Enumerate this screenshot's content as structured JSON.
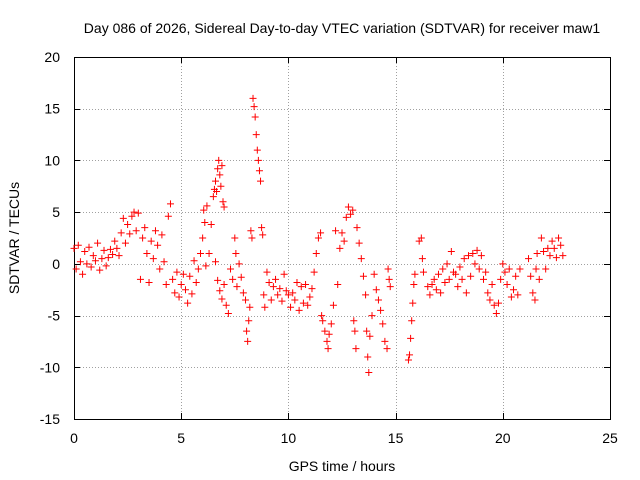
{
  "chart_data": {
    "type": "scatter",
    "title": "Day 086 of 2026, Sidereal Day-to-day VTEC variation (SDTVAR) for receiver maw1",
    "xlabel": "GPS time / hours",
    "ylabel": "SDTVAR / TECUs",
    "xlim": [
      0,
      25
    ],
    "ylim": [
      -15,
      20
    ],
    "x_ticks": [
      0,
      5,
      10,
      15,
      20,
      25
    ],
    "y_ticks": [
      -15,
      -10,
      -5,
      0,
      5,
      10,
      15,
      20
    ],
    "x_tick_labels": [
      "0",
      "5",
      "10",
      "15",
      "20",
      "25"
    ],
    "y_tick_labels": [
      "-15",
      "-10",
      "-5",
      "0",
      "5",
      "10",
      "15",
      "20"
    ],
    "grid": true,
    "marker": "+",
    "series": [
      {
        "name": "maw1",
        "color": "#ff0000",
        "points": [
          [
            0.0,
            1.5
          ],
          [
            0.1,
            -0.5
          ],
          [
            0.2,
            1.8
          ],
          [
            0.3,
            0.2
          ],
          [
            0.4,
            -1.0
          ],
          [
            0.5,
            1.2
          ],
          [
            0.6,
            0.0
          ],
          [
            0.7,
            1.6
          ],
          [
            0.8,
            -0.3
          ],
          [
            0.9,
            0.8
          ],
          [
            1.0,
            0.3
          ],
          [
            1.1,
            2.0
          ],
          [
            1.2,
            -0.6
          ],
          [
            1.3,
            0.5
          ],
          [
            1.4,
            1.3
          ],
          [
            1.5,
            -0.2
          ],
          [
            1.6,
            0.6
          ],
          [
            1.7,
            1.4
          ],
          [
            1.8,
            0.9
          ],
          [
            1.9,
            2.2
          ],
          [
            2.0,
            1.5
          ],
          [
            2.1,
            0.8
          ],
          [
            2.2,
            3.0
          ],
          [
            2.3,
            4.4
          ],
          [
            2.4,
            2.0
          ],
          [
            2.5,
            3.8
          ],
          [
            2.6,
            2.9
          ],
          [
            2.7,
            4.6
          ],
          [
            2.8,
            5.0
          ],
          [
            2.9,
            3.2
          ],
          [
            3.0,
            4.9
          ],
          [
            3.1,
            -1.5
          ],
          [
            3.2,
            2.5
          ],
          [
            3.3,
            3.5
          ],
          [
            3.4,
            1.0
          ],
          [
            3.5,
            -1.8
          ],
          [
            3.6,
            2.2
          ],
          [
            3.7,
            0.5
          ],
          [
            3.8,
            3.2
          ],
          [
            3.9,
            1.8
          ],
          [
            4.0,
            -0.5
          ],
          [
            4.1,
            2.8
          ],
          [
            4.2,
            0.2
          ],
          [
            4.3,
            -2.0
          ],
          [
            4.4,
            4.6
          ],
          [
            4.5,
            5.8
          ],
          [
            4.6,
            -1.5
          ],
          [
            4.7,
            -2.8
          ],
          [
            4.8,
            -0.8
          ],
          [
            4.9,
            -3.2
          ],
          [
            5.0,
            -2.0
          ],
          [
            5.1,
            -1.0
          ],
          [
            5.2,
            -2.5
          ],
          [
            5.3,
            -3.8
          ],
          [
            5.4,
            -1.2
          ],
          [
            5.5,
            -2.9
          ],
          [
            5.6,
            0.3
          ],
          [
            5.7,
            -1.8
          ],
          [
            5.8,
            -0.5
          ],
          [
            5.9,
            1.0
          ],
          [
            6.0,
            2.5
          ],
          [
            6.05,
            5.2
          ],
          [
            6.1,
            4.0
          ],
          [
            6.15,
            -0.2
          ],
          [
            6.2,
            5.6
          ],
          [
            6.3,
            1.0
          ],
          [
            6.4,
            3.8
          ],
          [
            6.5,
            6.5
          ],
          [
            6.55,
            7.2
          ],
          [
            6.6,
            8.0
          ],
          [
            6.65,
            7.0
          ],
          [
            6.7,
            9.2
          ],
          [
            6.75,
            10.0
          ],
          [
            6.8,
            8.6
          ],
          [
            6.85,
            7.5
          ],
          [
            6.9,
            9.5
          ],
          [
            6.95,
            6.0
          ],
          [
            7.0,
            5.5
          ],
          [
            6.6,
            0.2
          ],
          [
            6.7,
            -1.6
          ],
          [
            6.8,
            -2.6
          ],
          [
            6.9,
            -3.4
          ],
          [
            7.0,
            -2.0
          ],
          [
            7.1,
            -4.0
          ],
          [
            7.2,
            -4.8
          ],
          [
            7.3,
            -0.5
          ],
          [
            7.4,
            -1.5
          ],
          [
            7.5,
            2.5
          ],
          [
            7.55,
            1.0
          ],
          [
            7.6,
            -2.2
          ],
          [
            7.7,
            0.0
          ],
          [
            7.8,
            -1.3
          ],
          [
            7.9,
            -2.8
          ],
          [
            8.0,
            -3.5
          ],
          [
            8.05,
            -6.5
          ],
          [
            8.1,
            -7.5
          ],
          [
            8.15,
            -5.5
          ],
          [
            8.2,
            -4.2
          ],
          [
            8.25,
            3.2
          ],
          [
            8.3,
            2.5
          ],
          [
            8.35,
            16.0
          ],
          [
            8.4,
            15.2
          ],
          [
            8.45,
            14.2
          ],
          [
            8.5,
            12.5
          ],
          [
            8.55,
            11.0
          ],
          [
            8.6,
            10.0
          ],
          [
            8.65,
            9.0
          ],
          [
            8.7,
            8.0
          ],
          [
            8.75,
            3.5
          ],
          [
            8.8,
            2.8
          ],
          [
            8.85,
            -3.0
          ],
          [
            8.9,
            -4.2
          ],
          [
            9.0,
            -0.8
          ],
          [
            9.1,
            -1.8
          ],
          [
            9.2,
            -3.5
          ],
          [
            9.3,
            -2.2
          ],
          [
            9.4,
            -1.5
          ],
          [
            9.5,
            -3.0
          ],
          [
            9.6,
            -2.4
          ],
          [
            9.7,
            -3.6
          ],
          [
            9.8,
            -1.0
          ],
          [
            9.9,
            -2.6
          ],
          [
            10.0,
            -3.0
          ],
          [
            10.1,
            -4.2
          ],
          [
            10.2,
            -2.8
          ],
          [
            10.3,
            -3.5
          ],
          [
            10.4,
            -1.8
          ],
          [
            10.5,
            -4.5
          ],
          [
            10.6,
            -2.2
          ],
          [
            10.7,
            -3.8
          ],
          [
            10.8,
            -2.0
          ],
          [
            10.9,
            -4.0
          ],
          [
            11.0,
            -3.2
          ],
          [
            11.1,
            -2.4
          ],
          [
            11.2,
            -0.8
          ],
          [
            11.3,
            1.0
          ],
          [
            11.4,
            2.5
          ],
          [
            11.5,
            3.0
          ],
          [
            11.55,
            -5.0
          ],
          [
            11.6,
            -5.5
          ],
          [
            11.7,
            -6.5
          ],
          [
            11.8,
            -7.5
          ],
          [
            11.85,
            -8.2
          ],
          [
            11.9,
            -6.8
          ],
          [
            12.0,
            -5.8
          ],
          [
            12.1,
            -4.0
          ],
          [
            12.2,
            3.2
          ],
          [
            12.3,
            -2.0
          ],
          [
            12.4,
            1.5
          ],
          [
            12.5,
            3.0
          ],
          [
            12.6,
            2.2
          ],
          [
            12.7,
            4.5
          ],
          [
            12.8,
            5.5
          ],
          [
            12.9,
            4.8
          ],
          [
            13.0,
            5.2
          ],
          [
            13.05,
            -5.5
          ],
          [
            13.1,
            -6.5
          ],
          [
            13.15,
            -8.2
          ],
          [
            13.2,
            3.5
          ],
          [
            13.3,
            2.0
          ],
          [
            13.4,
            0.5
          ],
          [
            13.5,
            -1.2
          ],
          [
            13.6,
            -3.0
          ],
          [
            13.65,
            -6.5
          ],
          [
            13.7,
            -9.0
          ],
          [
            13.75,
            -10.5
          ],
          [
            13.8,
            -7.0
          ],
          [
            13.9,
            -5.0
          ],
          [
            14.0,
            -1.0
          ],
          [
            14.1,
            -2.5
          ],
          [
            14.2,
            -3.5
          ],
          [
            14.3,
            -4.5
          ],
          [
            14.4,
            -5.8
          ],
          [
            14.5,
            -7.5
          ],
          [
            14.6,
            -8.2
          ],
          [
            14.65,
            -0.5
          ],
          [
            14.7,
            -1.5
          ],
          [
            14.75,
            -2.2
          ],
          [
            15.6,
            -9.3
          ],
          [
            15.65,
            -8.8
          ],
          [
            15.7,
            -7.2
          ],
          [
            15.75,
            -5.5
          ],
          [
            15.8,
            -3.8
          ],
          [
            15.85,
            -2.0
          ],
          [
            15.9,
            -1.0
          ],
          [
            16.1,
            2.2
          ],
          [
            16.2,
            2.5
          ],
          [
            16.25,
            0.5
          ],
          [
            16.3,
            -0.8
          ],
          [
            16.5,
            -2.2
          ],
          [
            16.6,
            -3.0
          ],
          [
            16.7,
            -2.0
          ],
          [
            16.8,
            -1.5
          ],
          [
            16.9,
            -2.5
          ],
          [
            17.0,
            -1.0
          ],
          [
            17.1,
            -2.8
          ],
          [
            17.2,
            -0.5
          ],
          [
            17.3,
            -1.8
          ],
          [
            17.4,
            0.0
          ],
          [
            17.5,
            -1.5
          ],
          [
            17.6,
            1.2
          ],
          [
            17.7,
            -0.8
          ],
          [
            17.8,
            -1.0
          ],
          [
            17.9,
            -2.2
          ],
          [
            18.0,
            -0.3
          ],
          [
            18.1,
            -1.5
          ],
          [
            18.2,
            0.5
          ],
          [
            18.3,
            -2.8
          ],
          [
            18.4,
            0.8
          ],
          [
            18.5,
            -1.2
          ],
          [
            18.6,
            1.0
          ],
          [
            18.7,
            0.0
          ],
          [
            18.8,
            1.3
          ],
          [
            18.9,
            -0.5
          ],
          [
            19.0,
            0.8
          ],
          [
            19.1,
            -1.5
          ],
          [
            19.2,
            -0.8
          ],
          [
            19.3,
            -2.8
          ],
          [
            19.4,
            -3.5
          ],
          [
            19.5,
            -2.0
          ],
          [
            19.6,
            -4.0
          ],
          [
            19.7,
            -4.8
          ],
          [
            19.8,
            -3.8
          ],
          [
            19.9,
            -1.5
          ],
          [
            20.0,
            0.0
          ],
          [
            20.1,
            -0.8
          ],
          [
            20.2,
            -2.0
          ],
          [
            20.3,
            -0.5
          ],
          [
            20.4,
            -3.2
          ],
          [
            20.5,
            -2.5
          ],
          [
            20.6,
            -1.2
          ],
          [
            20.7,
            -3.0
          ],
          [
            20.8,
            -0.5
          ],
          [
            21.2,
            0.5
          ],
          [
            21.3,
            -1.2
          ],
          [
            21.4,
            -2.8
          ],
          [
            21.5,
            -3.5
          ],
          [
            21.55,
            -0.5
          ],
          [
            21.6,
            1.0
          ],
          [
            21.7,
            -1.5
          ],
          [
            21.8,
            2.5
          ],
          [
            21.9,
            1.2
          ],
          [
            22.0,
            -0.5
          ],
          [
            22.1,
            1.5
          ],
          [
            22.2,
            0.8
          ],
          [
            22.3,
            2.2
          ],
          [
            22.4,
            1.5
          ],
          [
            22.5,
            0.6
          ],
          [
            22.6,
            2.5
          ],
          [
            22.7,
            1.8
          ],
          [
            22.8,
            0.8
          ]
        ]
      }
    ]
  }
}
